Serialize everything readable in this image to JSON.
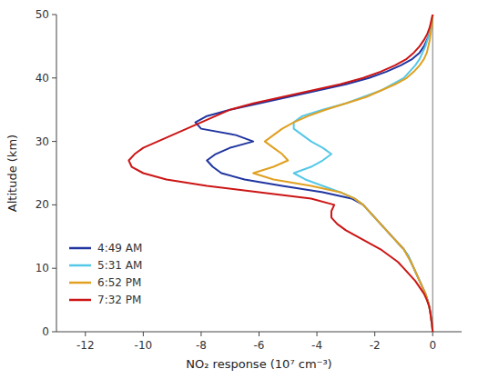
{
  "chart_data": {
    "type": "line",
    "xlabel": "NO₂ response (10⁷ cm⁻³)",
    "ylabel": "Altitude (km)",
    "xlim": [
      -13,
      1
    ],
    "ylim": [
      0,
      50
    ],
    "xticks": [
      -12,
      -10,
      -8,
      -6,
      -4,
      -2,
      0
    ],
    "yticks": [
      0,
      10,
      20,
      30,
      40,
      50
    ],
    "legend": "lower left",
    "grid": false,
    "vlines": [
      0
    ],
    "series": [
      {
        "name": "4:49 AM",
        "color": "#2035A0",
        "x": [
          0.0,
          -0.02,
          -0.05,
          -0.08,
          -0.12,
          -0.18,
          -0.25,
          -0.35,
          -0.45,
          -0.55,
          -0.65,
          -0.75,
          -0.85,
          -1.0,
          -1.2,
          -1.4,
          -1.6,
          -1.8,
          -2.0,
          -2.2,
          -2.4,
          -2.8,
          -3.8,
          -5.2,
          -6.5,
          -7.3,
          -7.6,
          -7.8,
          -7.5,
          -7.0,
          -6.2,
          -6.8,
          -8.0,
          -8.2,
          -7.8,
          -7.0,
          -6.0,
          -5.0,
          -4.0,
          -3.0,
          -2.2,
          -1.6,
          -1.1,
          -0.7,
          -0.45,
          -0.3,
          -0.2,
          -0.1,
          -0.05,
          -0.02,
          0.0
        ],
        "values": [
          0,
          1,
          2,
          3,
          4,
          5,
          6,
          7,
          8,
          9,
          10,
          11,
          12,
          13,
          14,
          15,
          16,
          17,
          18,
          19,
          20,
          21,
          22,
          23,
          24,
          25,
          26,
          27,
          28,
          29,
          30,
          31,
          32,
          33,
          34,
          35,
          36,
          37,
          38,
          39,
          40,
          41,
          42,
          43,
          44,
          45,
          46,
          47,
          48,
          49,
          50
        ]
      },
      {
        "name": "5:31 AM",
        "color": "#55C8E8",
        "x": [
          0.0,
          -0.02,
          -0.05,
          -0.08,
          -0.12,
          -0.18,
          -0.25,
          -0.35,
          -0.45,
          -0.55,
          -0.65,
          -0.75,
          -0.85,
          -1.0,
          -1.2,
          -1.4,
          -1.6,
          -1.8,
          -2.0,
          -2.2,
          -2.4,
          -2.7,
          -3.2,
          -3.8,
          -4.4,
          -4.8,
          -4.2,
          -3.8,
          -3.5,
          -3.8,
          -4.2,
          -4.5,
          -4.8,
          -4.8,
          -4.5,
          -3.8,
          -3.0,
          -2.4,
          -1.8,
          -1.4,
          -1.0,
          -0.8,
          -0.6,
          -0.45,
          -0.35,
          -0.25,
          -0.18,
          -0.1,
          -0.05,
          -0.02,
          0.0
        ],
        "values": [
          0,
          1,
          2,
          3,
          4,
          5,
          6,
          7,
          8,
          9,
          10,
          11,
          12,
          13,
          14,
          15,
          16,
          17,
          18,
          19,
          20,
          21,
          22,
          23,
          24,
          25,
          26,
          27,
          28,
          29,
          30,
          31,
          32,
          33,
          34,
          35,
          36,
          37,
          38,
          39,
          40,
          41,
          42,
          43,
          44,
          45,
          46,
          47,
          48,
          49,
          50
        ]
      },
      {
        "name": "6:52 PM",
        "color": "#E0A020",
        "x": [
          0.0,
          -0.02,
          -0.05,
          -0.08,
          -0.12,
          -0.18,
          -0.25,
          -0.35,
          -0.45,
          -0.55,
          -0.65,
          -0.75,
          -0.88,
          -1.0,
          -1.2,
          -1.4,
          -1.6,
          -1.8,
          -2.0,
          -2.2,
          -2.4,
          -2.7,
          -3.2,
          -4.2,
          -5.5,
          -6.2,
          -5.5,
          -5.0,
          -5.2,
          -5.5,
          -5.8,
          -5.5,
          -5.2,
          -4.8,
          -4.3,
          -3.7,
          -3.0,
          -2.3,
          -1.8,
          -1.3,
          -0.9,
          -0.65,
          -0.45,
          -0.3,
          -0.2,
          -0.15,
          -0.1,
          -0.07,
          -0.04,
          -0.02,
          0.0
        ],
        "values": [
          0,
          1,
          2,
          3,
          4,
          5,
          6,
          7,
          8,
          9,
          10,
          11,
          12,
          13,
          14,
          15,
          16,
          17,
          18,
          19,
          20,
          21,
          22,
          23,
          24,
          25,
          26,
          27,
          28,
          29,
          30,
          31,
          32,
          33,
          34,
          35,
          36,
          37,
          38,
          39,
          40,
          41,
          42,
          43,
          44,
          45,
          46,
          47,
          48,
          49,
          50
        ]
      },
      {
        "name": "7:32 PM",
        "color": "#CC1515",
        "x": [
          0.0,
          -0.02,
          -0.05,
          -0.08,
          -0.12,
          -0.2,
          -0.3,
          -0.45,
          -0.6,
          -0.8,
          -1.0,
          -1.2,
          -1.5,
          -1.8,
          -2.2,
          -2.6,
          -3.0,
          -3.3,
          -3.5,
          -3.5,
          -3.4,
          -4.2,
          -6.0,
          -7.8,
          -9.2,
          -10.0,
          -10.4,
          -10.5,
          -10.3,
          -10.0,
          -9.5,
          -9.0,
          -8.5,
          -8.0,
          -7.5,
          -7.0,
          -6.2,
          -5.2,
          -4.2,
          -3.2,
          -2.4,
          -1.8,
          -1.3,
          -0.9,
          -0.65,
          -0.45,
          -0.3,
          -0.18,
          -0.1,
          -0.05,
          0.0
        ],
        "values": [
          0,
          1,
          2,
          3,
          4,
          5,
          6,
          7,
          8,
          9,
          10,
          11,
          12,
          13,
          14,
          15,
          16,
          17,
          18,
          19,
          20,
          21,
          22,
          23,
          24,
          25,
          26,
          27,
          28,
          29,
          30,
          31,
          32,
          33,
          34,
          35,
          36,
          37,
          38,
          39,
          40,
          41,
          42,
          43,
          44,
          45,
          46,
          47,
          48,
          49,
          50
        ]
      }
    ]
  }
}
